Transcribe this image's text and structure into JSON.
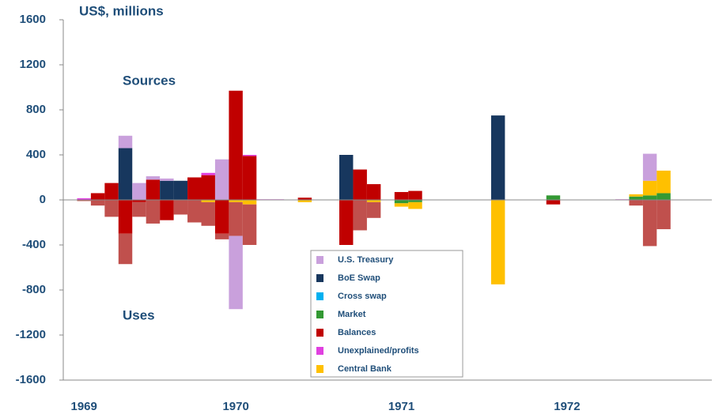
{
  "chart_data": {
    "type": "bar",
    "stacked": true,
    "ylabel": "US$, millions",
    "annotations": [
      "Sources",
      "Uses"
    ],
    "categories": [
      null,
      "1969",
      null,
      null,
      null,
      null,
      null,
      null,
      null,
      null,
      null,
      null,
      "1970",
      null,
      null,
      null,
      null,
      null,
      null,
      null,
      null,
      null,
      null,
      null,
      "1971",
      null,
      null,
      null,
      null,
      null,
      null,
      null,
      null,
      null,
      null,
      null,
      "1972",
      null,
      null,
      null,
      null,
      null,
      null,
      null,
      null,
      null,
      null
    ],
    "ylim": [
      -1600,
      1600
    ],
    "yticks": [
      -1600,
      -1200,
      -800,
      -400,
      0,
      400,
      800,
      1200,
      1600
    ],
    "series": [
      {
        "name": "U.S. Treasury",
        "color": "#c9a0dc",
        "values": [
          0,
          0,
          0,
          0,
          110,
          150,
          30,
          20,
          0,
          0,
          0,
          360,
          -650,
          0,
          0,
          0,
          0,
          0,
          0,
          0,
          0,
          0,
          0,
          0,
          0,
          0,
          0,
          0,
          0,
          0,
          0,
          0,
          0,
          0,
          0,
          0,
          0,
          0,
          0,
          0,
          0,
          0,
          240,
          0,
          0,
          0,
          0
        ]
      },
      {
        "name": "BoE Swap",
        "color": "#17375e",
        "values": [
          0,
          0,
          0,
          0,
          460,
          0,
          0,
          170,
          170,
          0,
          0,
          0,
          0,
          0,
          0,
          0,
          0,
          0,
          0,
          0,
          400,
          0,
          0,
          0,
          0,
          0,
          0,
          0,
          0,
          0,
          0,
          750,
          0,
          0,
          0,
          0,
          0,
          0,
          0,
          0,
          0,
          0,
          0,
          0,
          0,
          0,
          0
        ]
      },
      {
        "name": "Cross swap",
        "color": "#00b0f0",
        "values": [
          0,
          0,
          0,
          0,
          0,
          0,
          0,
          0,
          0,
          0,
          0,
          0,
          0,
          0,
          0,
          0,
          0,
          0,
          0,
          0,
          0,
          0,
          0,
          0,
          0,
          0,
          0,
          0,
          0,
          0,
          0,
          0,
          0,
          0,
          0,
          0,
          0,
          0,
          0,
          0,
          0,
          0,
          0,
          0,
          0,
          0,
          0
        ]
      },
      {
        "name": "Market",
        "color": "#339933",
        "values": [
          0,
          0,
          0,
          0,
          0,
          0,
          0,
          0,
          0,
          0,
          0,
          0,
          0,
          0,
          0,
          0,
          0,
          0,
          0,
          0,
          0,
          0,
          0,
          0,
          -30,
          -20,
          0,
          0,
          0,
          0,
          0,
          0,
          0,
          0,
          0,
          40,
          0,
          0,
          0,
          0,
          0,
          30,
          40,
          60,
          0,
          0,
          0
        ]
      },
      {
        "name": "Balances",
        "color": "#c00000",
        "values": [
          0,
          0,
          60,
          150,
          -300,
          -20,
          180,
          -180,
          0,
          200,
          220,
          -300,
          970,
          390,
          0,
          0,
          0,
          20,
          0,
          0,
          -400,
          270,
          140,
          0,
          70,
          80,
          0,
          0,
          0,
          0,
          0,
          0,
          0,
          0,
          0,
          -40,
          0,
          0,
          0,
          0,
          0,
          0,
          0,
          0,
          0,
          0,
          0
        ]
      },
      {
        "name": "Unexplained/profits",
        "color": "#e040e0",
        "values": [
          0,
          15,
          0,
          0,
          0,
          0,
          0,
          0,
          0,
          0,
          20,
          0,
          0,
          10,
          5,
          5,
          0,
          0,
          0,
          0,
          0,
          0,
          0,
          0,
          0,
          0,
          0,
          0,
          0,
          0,
          0,
          0,
          0,
          0,
          0,
          0,
          0,
          0,
          0,
          0,
          5,
          0,
          0,
          0,
          0,
          0,
          0
        ]
      },
      {
        "name": "Central Bank",
        "color": "#ffc000",
        "values": [
          0,
          0,
          0,
          0,
          0,
          0,
          0,
          0,
          0,
          0,
          -20,
          0,
          -20,
          -40,
          0,
          0,
          0,
          -20,
          0,
          0,
          0,
          0,
          -20,
          0,
          -30,
          -60,
          0,
          0,
          0,
          0,
          0,
          -750,
          0,
          0,
          0,
          0,
          0,
          0,
          0,
          0,
          0,
          20,
          130,
          200,
          0,
          0,
          0
        ]
      },
      {
        "color": "#c0504d",
        "values": [
          0,
          -10,
          -50,
          -150,
          -270,
          -130,
          -210,
          0,
          -130,
          -200,
          -210,
          -50,
          -300,
          -360,
          0,
          0,
          0,
          0,
          0,
          0,
          0,
          -270,
          -140,
          0,
          0,
          0,
          0,
          0,
          0,
          0,
          0,
          0,
          0,
          0,
          0,
          0,
          0,
          0,
          0,
          0,
          0,
          -50,
          -410,
          -260,
          0,
          0,
          0
        ]
      }
    ]
  }
}
